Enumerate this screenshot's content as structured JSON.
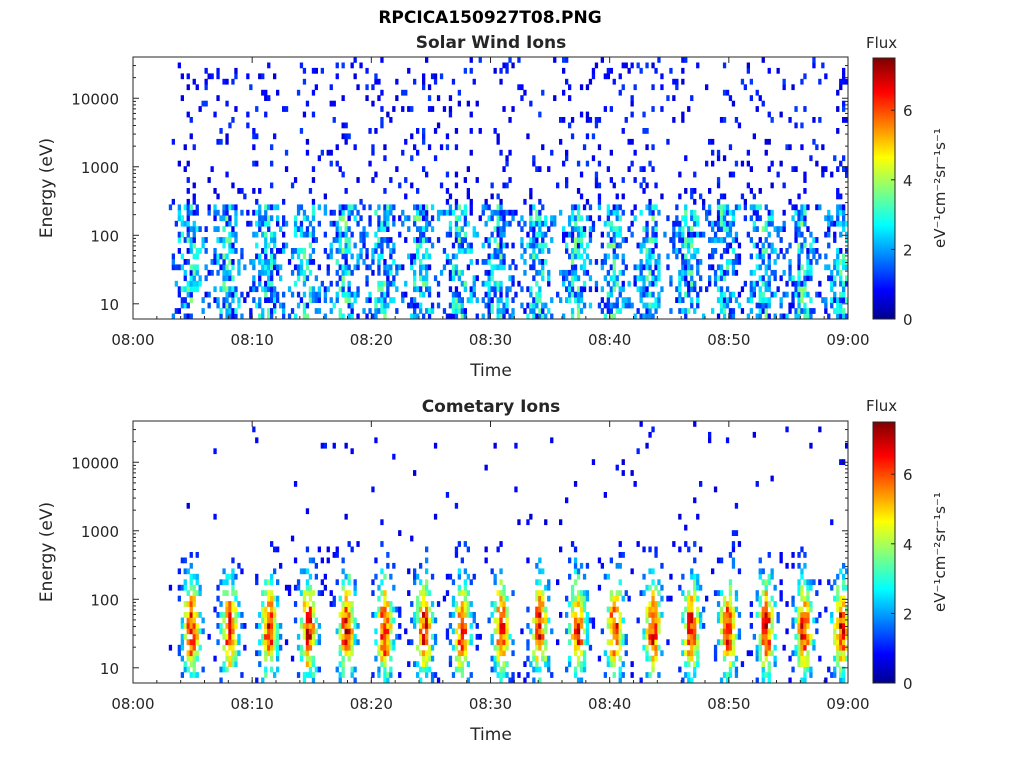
{
  "figure_title": "RPCICA150927T08.PNG",
  "colors": {
    "colormap": "jet",
    "axis": "#262626",
    "background": "#ffffff"
  },
  "chart_data": [
    {
      "type": "heatmap",
      "title": "Solar Wind Ions",
      "xlabel": "Time",
      "ylabel": "Energy (eV)",
      "yscale": "log",
      "xlim": [
        "08:00",
        "09:00"
      ],
      "ylim": [
        6,
        40000
      ],
      "x_ticks": [
        "08:00",
        "08:10",
        "08:20",
        "08:30",
        "08:40",
        "08:50",
        "09:00"
      ],
      "y_ticks": [
        "10",
        "100",
        "1000",
        "10000"
      ],
      "colorbar": {
        "label": "Flux",
        "units": "eV⁻¹cm⁻²sr⁻¹s⁻¹",
        "range": [
          0,
          7.5
        ],
        "ticks": [
          "0",
          "2",
          "4",
          "6"
        ]
      },
      "data_start": "08:03",
      "bursts_minutes": [
        4.6,
        7.8,
        11.2,
        14.3,
        17.6,
        20.8,
        24.0,
        27.3,
        30.5,
        33.8,
        37.1,
        40.2,
        43.2,
        46.5,
        49.6,
        52.7,
        56.0,
        59.4
      ],
      "typical_flux_low_energy": 2.5,
      "peak_flux": 4.0
    },
    {
      "type": "heatmap",
      "title": "Cometary Ions",
      "xlabel": "Time",
      "ylabel": "Energy (eV)",
      "yscale": "log",
      "xlim": [
        "08:00",
        "09:00"
      ],
      "ylim": [
        6,
        40000
      ],
      "x_ticks": [
        "08:00",
        "08:10",
        "08:20",
        "08:30",
        "08:40",
        "08:50",
        "09:00"
      ],
      "y_ticks": [
        "10",
        "100",
        "1000",
        "10000"
      ],
      "colorbar": {
        "label": "Flux",
        "units": "eV⁻¹cm⁻²sr⁻¹s⁻¹",
        "range": [
          0,
          7.5
        ],
        "ticks": [
          "0",
          "2",
          "4",
          "6"
        ]
      },
      "data_start": "08:03",
      "bursts_minutes": [
        4.8,
        8.0,
        11.3,
        14.6,
        17.8,
        21.0,
        24.3,
        27.5,
        30.8,
        34.0,
        37.2,
        40.3,
        43.5,
        46.7,
        49.8,
        53.0,
        56.2,
        59.3
      ],
      "typical_peak_energy_eV": 35,
      "peak_flux": 6.8
    }
  ]
}
